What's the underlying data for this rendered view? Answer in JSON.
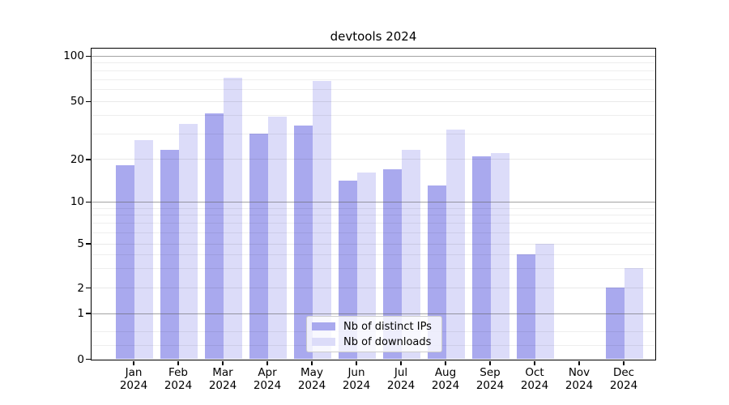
{
  "title": "devtools 2024",
  "legend": {
    "items": [
      {
        "label": "Nb of distinct IPs"
      },
      {
        "label": "Nb of downloads"
      }
    ]
  },
  "chart_data": {
    "type": "bar",
    "title": "devtools 2024",
    "categories": [
      "Jan",
      "Feb",
      "Mar",
      "Apr",
      "May",
      "Jun",
      "Jul",
      "Aug",
      "Sep",
      "Oct",
      "Nov",
      "Dec"
    ],
    "category_year": "2024",
    "series": [
      {
        "name": "Nb of distinct IPs",
        "color": "#a9a9ee",
        "values": [
          18,
          23,
          41,
          30,
          34,
          14,
          17,
          13,
          21,
          4,
          0,
          2
        ]
      },
      {
        "name": "Nb of downloads",
        "color": "#dcdcf9",
        "values": [
          27,
          35,
          71,
          39,
          68,
          16,
          23,
          32,
          22,
          5,
          0,
          3
        ]
      }
    ],
    "yscale": "symlog",
    "ylim": [
      0,
      110
    ],
    "y_major_ticks": [
      100,
      50,
      20,
      10,
      5,
      2,
      1,
      0
    ],
    "y_dark_grid": [
      100,
      10,
      1
    ],
    "y_minor_ticks": [
      90,
      80,
      70,
      60,
      40,
      30,
      9,
      8,
      7,
      6,
      4,
      3,
      0.6,
      0.3
    ],
    "axis_anchors": [
      [
        100,
        0.023
      ],
      [
        50,
        0.169
      ],
      [
        20,
        0.356
      ],
      [
        10,
        0.493
      ],
      [
        5,
        0.628
      ],
      [
        2,
        0.771
      ],
      [
        1,
        0.853
      ],
      [
        0,
        1.0
      ]
    ],
    "grid": true,
    "legend_position": "lower center"
  }
}
